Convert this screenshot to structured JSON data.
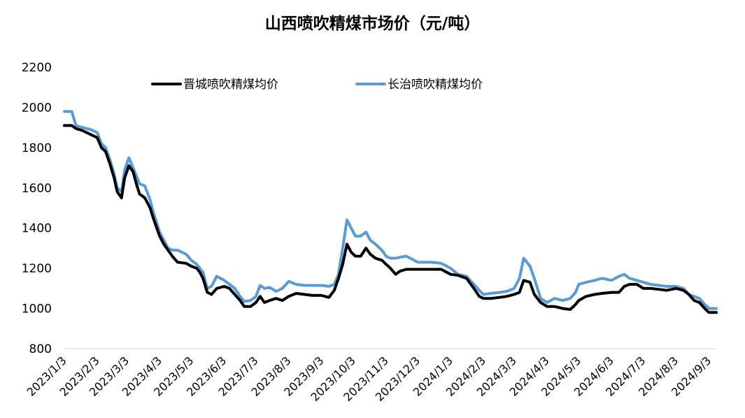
{
  "chart_data": {
    "type": "line",
    "title": "山西喷吹精煤市场价（元/吨）",
    "xlabel": "",
    "ylabel": "",
    "ylim": [
      800,
      2200
    ],
    "y_ticks": [
      800,
      1000,
      1200,
      1400,
      1600,
      1800,
      2000,
      2200
    ],
    "x_tick_labels": [
      "2023/1/3",
      "2023/2/3",
      "2023/3/3",
      "2023/4/3",
      "2023/5/3",
      "2023/6/3",
      "2023/7/3",
      "2023/8/3",
      "2023/9/3",
      "2023/10/3",
      "2023/11/3",
      "2023/12/3",
      "2024/1/3",
      "2024/2/3",
      "2024/3/3",
      "2024/4/3",
      "2024/5/3",
      "2024/6/3",
      "2024/7/3",
      "2024/8/3",
      "2024/9/3"
    ],
    "xlim": [
      "2023/1/3",
      "2024/9/10"
    ],
    "grid": false,
    "legend_position": "top",
    "series": [
      {
        "name": "晋城喷吹精煤均价",
        "color": "#000000",
        "points": [
          [
            "2023/1/3",
            1910
          ],
          [
            "2023/1/10",
            1910
          ],
          [
            "2023/1/14",
            1895
          ],
          [
            "2023/1/20",
            1885
          ],
          [
            "2023/1/28",
            1865
          ],
          [
            "2023/2/3",
            1850
          ],
          [
            "2023/2/7",
            1800
          ],
          [
            "2023/2/11",
            1780
          ],
          [
            "2023/2/15",
            1720
          ],
          [
            "2023/2/19",
            1650
          ],
          [
            "2023/2/22",
            1580
          ],
          [
            "2023/2/26",
            1550
          ],
          [
            "2023/3/1",
            1650
          ],
          [
            "2023/3/5",
            1710
          ],
          [
            "2023/3/9",
            1680
          ],
          [
            "2023/3/12",
            1620
          ],
          [
            "2023/3/15",
            1570
          ],
          [
            "2023/3/20",
            1550
          ],
          [
            "2023/3/25",
            1500
          ],
          [
            "2023/3/28",
            1450
          ],
          [
            "2023/4/3",
            1360
          ],
          [
            "2023/4/7",
            1320
          ],
          [
            "2023/4/11",
            1290
          ],
          [
            "2023/4/15",
            1260
          ],
          [
            "2023/4/20",
            1230
          ],
          [
            "2023/4/28",
            1225
          ],
          [
            "2023/5/3",
            1210
          ],
          [
            "2023/5/8",
            1200
          ],
          [
            "2023/5/11",
            1180
          ],
          [
            "2023/5/14",
            1150
          ],
          [
            "2023/5/18",
            1080
          ],
          [
            "2023/5/22",
            1070
          ],
          [
            "2023/5/27",
            1100
          ],
          [
            "2023/6/3",
            1110
          ],
          [
            "2023/6/8",
            1100
          ],
          [
            "2023/6/13",
            1070
          ],
          [
            "2023/6/18",
            1040
          ],
          [
            "2023/6/22",
            1010
          ],
          [
            "2023/6/28",
            1010
          ],
          [
            "2023/7/3",
            1030
          ],
          [
            "2023/7/7",
            1060
          ],
          [
            "2023/7/11",
            1030
          ],
          [
            "2023/7/16",
            1040
          ],
          [
            "2023/7/22",
            1050
          ],
          [
            "2023/7/28",
            1040
          ],
          [
            "2023/8/3",
            1060
          ],
          [
            "2023/8/10",
            1075
          ],
          [
            "2023/8/18",
            1070
          ],
          [
            "2023/8/25",
            1065
          ],
          [
            "2023/9/3",
            1065
          ],
          [
            "2023/9/10",
            1055
          ],
          [
            "2023/9/15",
            1090
          ],
          [
            "2023/9/19",
            1150
          ],
          [
            "2023/9/23",
            1220
          ],
          [
            "2023/9/27",
            1320
          ],
          [
            "2023/10/1",
            1280
          ],
          [
            "2023/10/5",
            1260
          ],
          [
            "2023/10/10",
            1260
          ],
          [
            "2023/10/15",
            1300
          ],
          [
            "2023/10/19",
            1270
          ],
          [
            "2023/10/24",
            1250
          ],
          [
            "2023/10/30",
            1240
          ],
          [
            "2023/11/3",
            1220
          ],
          [
            "2023/11/7",
            1200
          ],
          [
            "2023/11/12",
            1170
          ],
          [
            "2023/11/16",
            1185
          ],
          [
            "2023/11/22",
            1195
          ],
          [
            "2023/12/3",
            1195
          ],
          [
            "2023/12/15",
            1195
          ],
          [
            "2023/12/25",
            1195
          ],
          [
            "2024/1/3",
            1170
          ],
          [
            "2024/1/10",
            1165
          ],
          [
            "2024/1/18",
            1150
          ],
          [
            "2024/1/25",
            1100
          ],
          [
            "2024/1/30",
            1060
          ],
          [
            "2024/2/3",
            1050
          ],
          [
            "2024/2/10",
            1050
          ],
          [
            "2024/2/18",
            1055
          ],
          [
            "2024/2/25",
            1060
          ],
          [
            "2024/3/3",
            1070
          ],
          [
            "2024/3/8",
            1080
          ],
          [
            "2024/3/12",
            1140
          ],
          [
            "2024/3/18",
            1130
          ],
          [
            "2024/3/22",
            1070
          ],
          [
            "2024/3/28",
            1030
          ],
          [
            "2024/4/3",
            1010
          ],
          [
            "2024/4/10",
            1010
          ],
          [
            "2024/4/18",
            1000
          ],
          [
            "2024/4/25",
            995
          ],
          [
            "2024/4/30",
            1020
          ],
          [
            "2024/5/3",
            1040
          ],
          [
            "2024/5/10",
            1060
          ],
          [
            "2024/5/18",
            1070
          ],
          [
            "2024/5/25",
            1075
          ],
          [
            "2024/6/3",
            1080
          ],
          [
            "2024/6/10",
            1080
          ],
          [
            "2024/6/15",
            1110
          ],
          [
            "2024/6/20",
            1120
          ],
          [
            "2024/6/27",
            1120
          ],
          [
            "2024/7/3",
            1100
          ],
          [
            "2024/7/10",
            1100
          ],
          [
            "2024/7/18",
            1095
          ],
          [
            "2024/7/25",
            1090
          ],
          [
            "2024/8/3",
            1100
          ],
          [
            "2024/8/10",
            1090
          ],
          [
            "2024/8/15",
            1070
          ],
          [
            "2024/8/20",
            1040
          ],
          [
            "2024/8/25",
            1030
          ],
          [
            "2024/8/30",
            1000
          ],
          [
            "2024/9/3",
            980
          ],
          [
            "2024/9/10",
            980
          ]
        ]
      },
      {
        "name": "长治喷吹精煤均价",
        "color": "#5b9bd5",
        "points": [
          [
            "2023/1/3",
            1980
          ],
          [
            "2023/1/10",
            1980
          ],
          [
            "2023/1/14",
            1910
          ],
          [
            "2023/1/20",
            1900
          ],
          [
            "2023/1/28",
            1890
          ],
          [
            "2023/2/3",
            1875
          ],
          [
            "2023/2/7",
            1820
          ],
          [
            "2023/2/11",
            1800
          ],
          [
            "2023/2/15",
            1740
          ],
          [
            "2023/2/19",
            1670
          ],
          [
            "2023/2/22",
            1600
          ],
          [
            "2023/2/26",
            1580
          ],
          [
            "2023/3/1",
            1690
          ],
          [
            "2023/3/5",
            1750
          ],
          [
            "2023/3/9",
            1700
          ],
          [
            "2023/3/12",
            1660
          ],
          [
            "2023/3/15",
            1620
          ],
          [
            "2023/3/20",
            1610
          ],
          [
            "2023/3/25",
            1540
          ],
          [
            "2023/3/28",
            1480
          ],
          [
            "2023/4/3",
            1380
          ],
          [
            "2023/4/7",
            1340
          ],
          [
            "2023/4/11",
            1300
          ],
          [
            "2023/4/15",
            1290
          ],
          [
            "2023/4/20",
            1290
          ],
          [
            "2023/4/28",
            1270
          ],
          [
            "2023/5/3",
            1240
          ],
          [
            "2023/5/8",
            1220
          ],
          [
            "2023/5/11",
            1200
          ],
          [
            "2023/5/14",
            1180
          ],
          [
            "2023/5/18",
            1100
          ],
          [
            "2023/5/22",
            1110
          ],
          [
            "2023/5/27",
            1160
          ],
          [
            "2023/6/3",
            1140
          ],
          [
            "2023/6/8",
            1120
          ],
          [
            "2023/6/13",
            1100
          ],
          [
            "2023/6/18",
            1060
          ],
          [
            "2023/6/22",
            1035
          ],
          [
            "2023/6/28",
            1040
          ],
          [
            "2023/7/3",
            1060
          ],
          [
            "2023/7/7",
            1115
          ],
          [
            "2023/7/11",
            1100
          ],
          [
            "2023/7/16",
            1105
          ],
          [
            "2023/7/22",
            1085
          ],
          [
            "2023/7/28",
            1100
          ],
          [
            "2023/8/3",
            1135
          ],
          [
            "2023/8/10",
            1120
          ],
          [
            "2023/8/18",
            1115
          ],
          [
            "2023/8/25",
            1115
          ],
          [
            "2023/9/3",
            1115
          ],
          [
            "2023/9/10",
            1110
          ],
          [
            "2023/9/15",
            1120
          ],
          [
            "2023/9/19",
            1170
          ],
          [
            "2023/9/23",
            1300
          ],
          [
            "2023/9/27",
            1440
          ],
          [
            "2023/10/1",
            1400
          ],
          [
            "2023/10/5",
            1360
          ],
          [
            "2023/10/10",
            1360
          ],
          [
            "2023/10/15",
            1380
          ],
          [
            "2023/10/19",
            1340
          ],
          [
            "2023/10/24",
            1320
          ],
          [
            "2023/10/30",
            1290
          ],
          [
            "2023/11/3",
            1260
          ],
          [
            "2023/11/7",
            1250
          ],
          [
            "2023/11/12",
            1250
          ],
          [
            "2023/11/16",
            1255
          ],
          [
            "2023/11/22",
            1260
          ],
          [
            "2023/12/3",
            1230
          ],
          [
            "2023/12/15",
            1230
          ],
          [
            "2023/12/25",
            1225
          ],
          [
            "2024/1/3",
            1200
          ],
          [
            "2024/1/10",
            1170
          ],
          [
            "2024/1/18",
            1160
          ],
          [
            "2024/1/25",
            1120
          ],
          [
            "2024/1/30",
            1090
          ],
          [
            "2024/2/3",
            1070
          ],
          [
            "2024/2/10",
            1075
          ],
          [
            "2024/2/18",
            1080
          ],
          [
            "2024/2/25",
            1085
          ],
          [
            "2024/3/3",
            1100
          ],
          [
            "2024/3/8",
            1150
          ],
          [
            "2024/3/12",
            1250
          ],
          [
            "2024/3/18",
            1210
          ],
          [
            "2024/3/22",
            1150
          ],
          [
            "2024/3/28",
            1050
          ],
          [
            "2024/4/3",
            1030
          ],
          [
            "2024/4/10",
            1050
          ],
          [
            "2024/4/18",
            1040
          ],
          [
            "2024/4/25",
            1050
          ],
          [
            "2024/4/30",
            1080
          ],
          [
            "2024/5/3",
            1120
          ],
          [
            "2024/5/10",
            1130
          ],
          [
            "2024/5/18",
            1140
          ],
          [
            "2024/5/25",
            1150
          ],
          [
            "2024/6/3",
            1140
          ],
          [
            "2024/6/10",
            1160
          ],
          [
            "2024/6/15",
            1170
          ],
          [
            "2024/6/20",
            1150
          ],
          [
            "2024/6/27",
            1140
          ],
          [
            "2024/7/3",
            1130
          ],
          [
            "2024/7/10",
            1120
          ],
          [
            "2024/7/18",
            1115
          ],
          [
            "2024/7/25",
            1110
          ],
          [
            "2024/8/3",
            1110
          ],
          [
            "2024/8/10",
            1100
          ],
          [
            "2024/8/15",
            1070
          ],
          [
            "2024/8/20",
            1060
          ],
          [
            "2024/8/25",
            1050
          ],
          [
            "2024/8/30",
            1020
          ],
          [
            "2024/9/3",
            1000
          ],
          [
            "2024/9/10",
            1000
          ]
        ]
      }
    ]
  }
}
